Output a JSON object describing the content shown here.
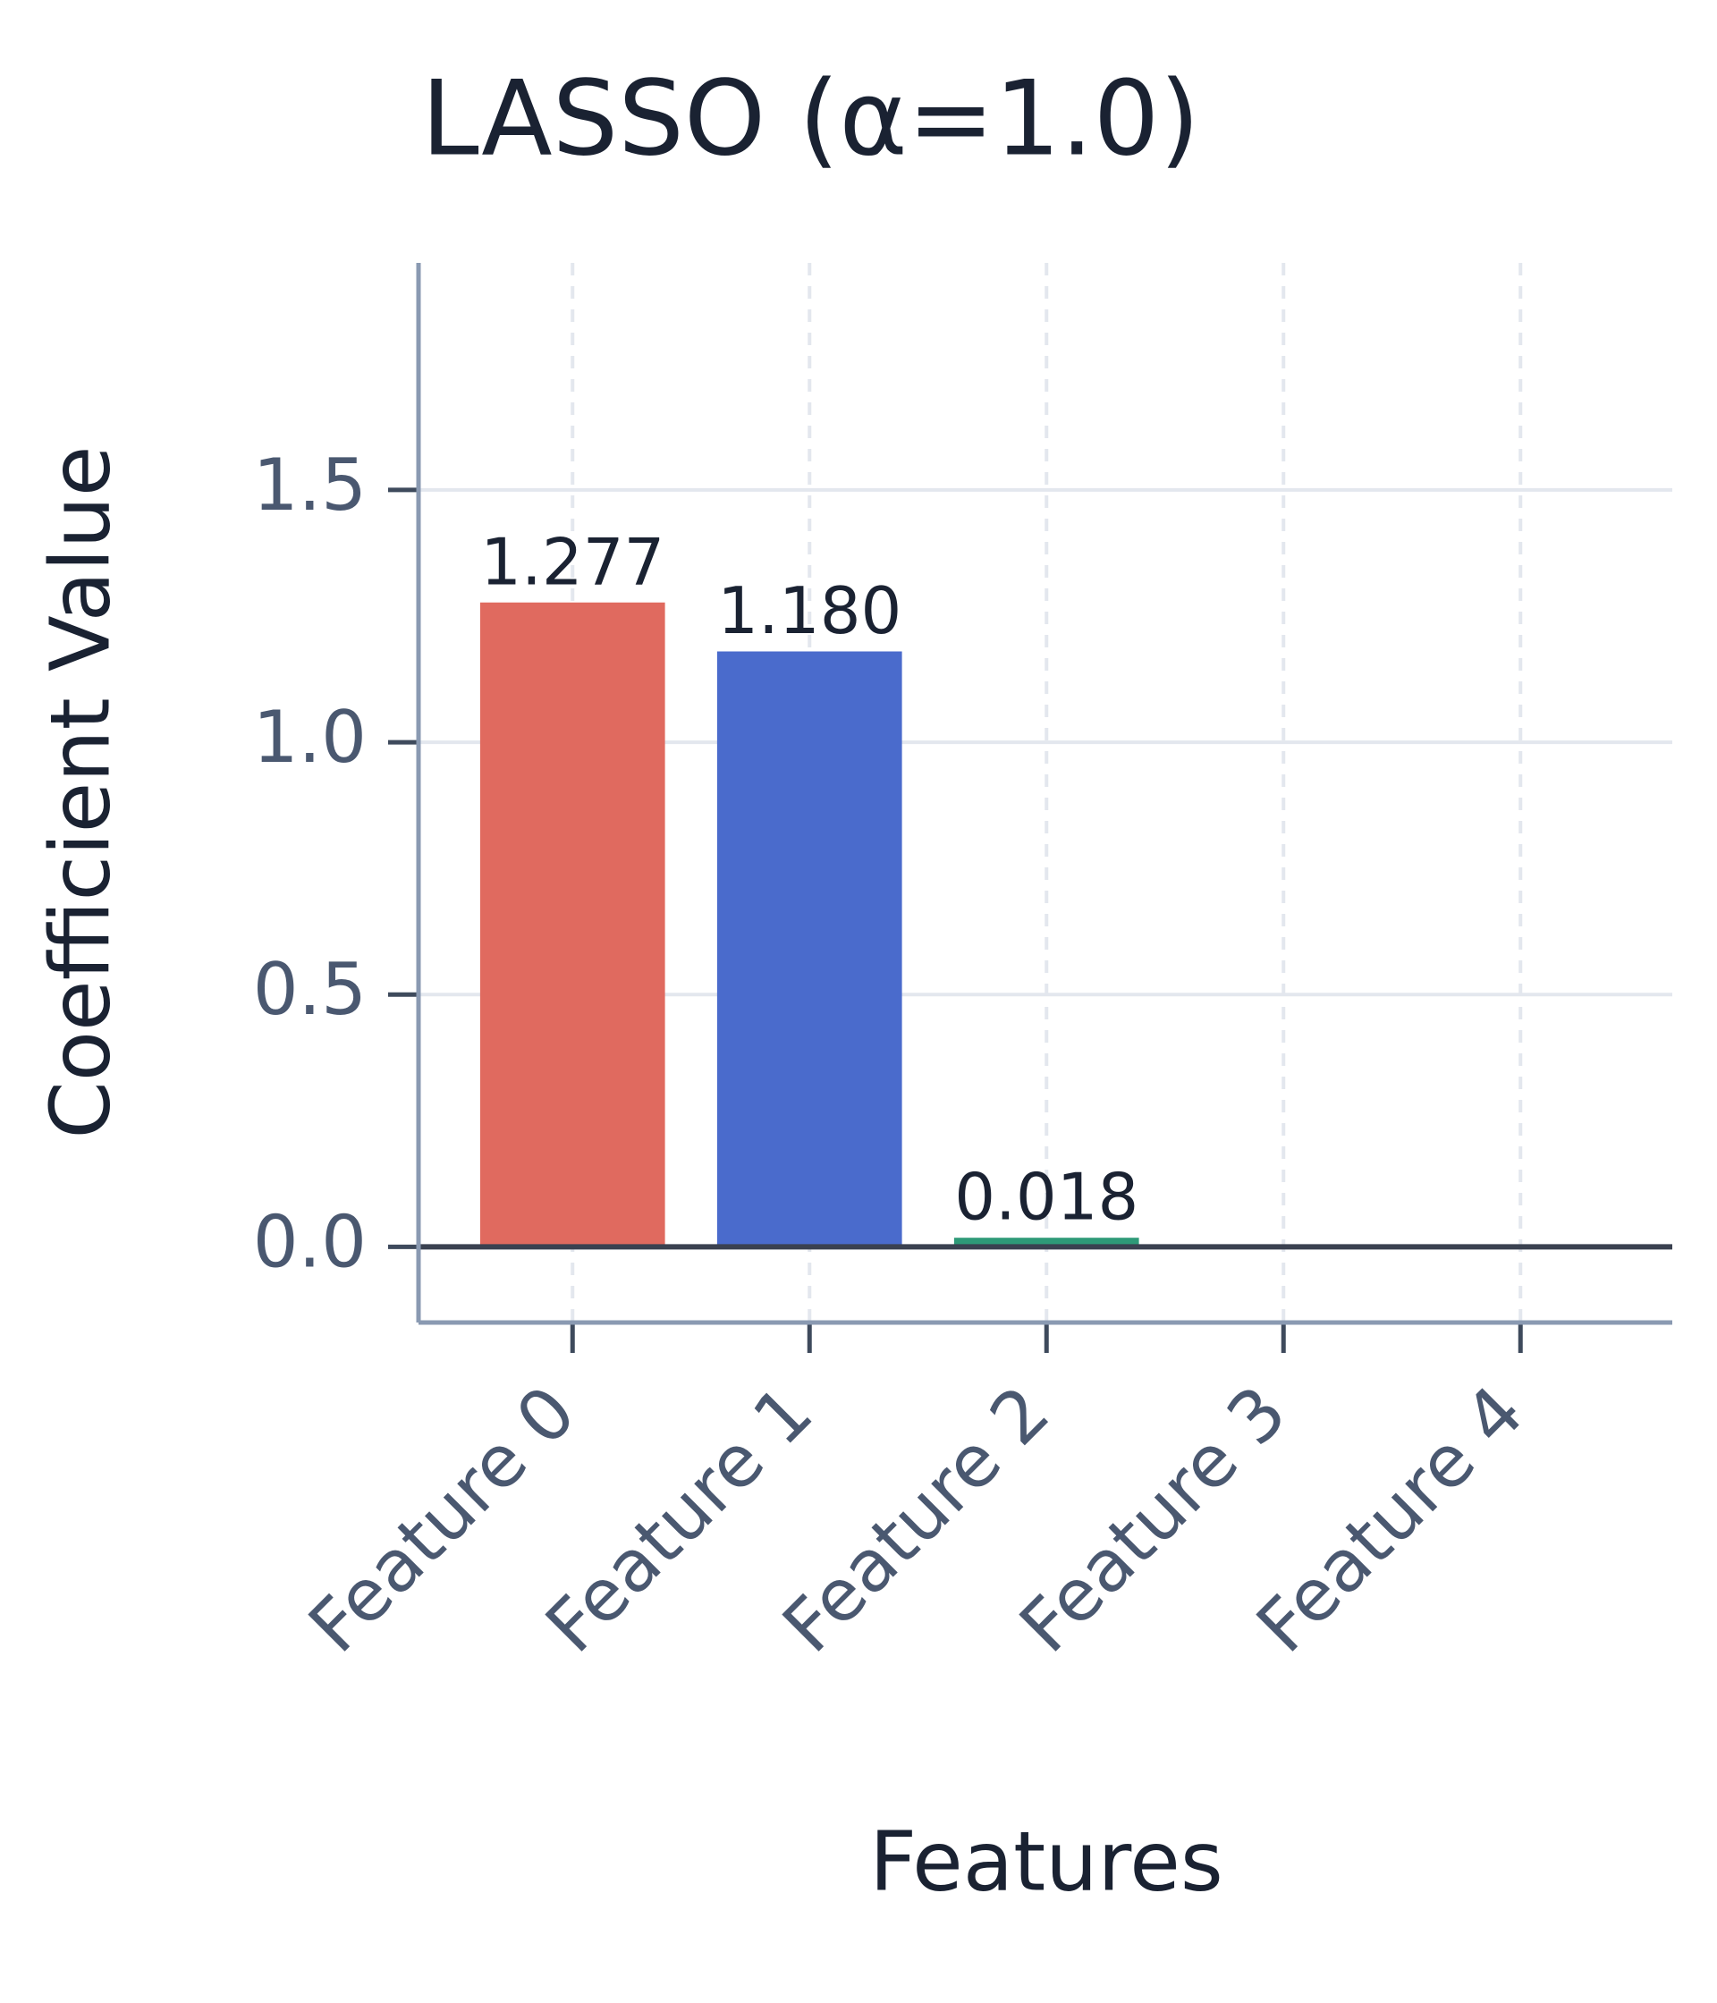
{
  "chart_data": {
    "type": "bar",
    "title": "LASSO (α=1.0)",
    "x_label": "Features",
    "y_label": "Coefficient Value",
    "categories": [
      "Feature 0",
      "Feature 1",
      "Feature 2",
      "Feature 3",
      "Feature 4"
    ],
    "values": [
      1.277,
      1.18,
      0.018,
      0,
      0
    ],
    "value_labels": [
      "1.277",
      "1.180",
      "0.018",
      null,
      null
    ],
    "colors": [
      "#e06a5f",
      "#4a6bcc",
      "#2e9a78"
    ],
    "ylim": [
      -0.15,
      1.95
    ],
    "yticks": [
      {
        "value": 0,
        "label": "0.0"
      },
      0.5,
      {
        "value": 1,
        "label": "1.0"
      },
      1.5
    ],
    "grid": true
  }
}
